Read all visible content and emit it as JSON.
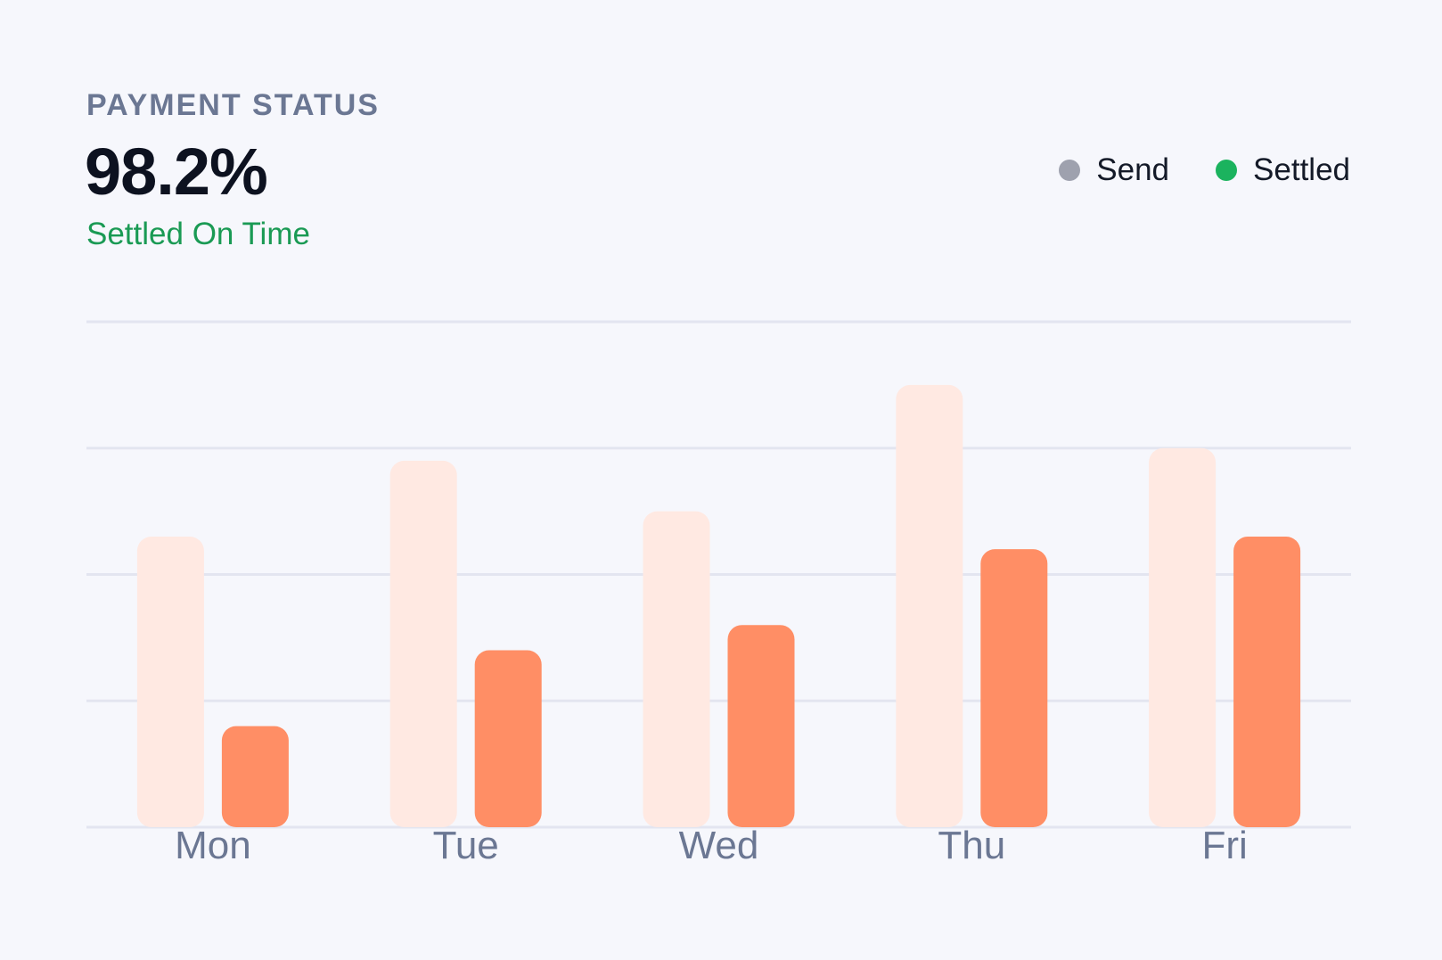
{
  "header": {
    "eyebrow": "PAYMENT STATUS",
    "value": "98.2%",
    "subtitle": "Settled On Time"
  },
  "colors": {
    "send_legend": "#9ea1ae",
    "settled_legend": "#1bb35e",
    "send_bar": "#ffe9e2",
    "settled_bar": "#ff8e65",
    "grid": "#e3e5f0"
  },
  "chart_data": {
    "type": "bar",
    "categories": [
      "Mon",
      "Tue",
      "Wed",
      "Thu",
      "Fri"
    ],
    "series": [
      {
        "name": "Send",
        "values": [
          2.3,
          2.9,
          2.5,
          3.5,
          3.0
        ]
      },
      {
        "name": "Settled",
        "values": [
          0.8,
          1.4,
          1.6,
          2.2,
          2.3
        ]
      }
    ],
    "ylim": [
      0,
      4
    ],
    "grid": true,
    "legend": "top-right",
    "title": "",
    "xlabel": "",
    "ylabel": ""
  }
}
